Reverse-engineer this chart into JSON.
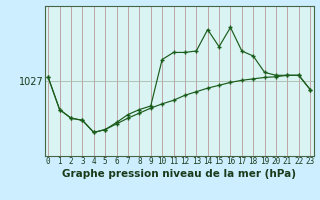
{
  "title": "Graphe pression niveau de la mer (hPa)",
  "background_color": "#cceeff",
  "plot_bg_color": "#daf4f4",
  "line_color": "#1a5c1a",
  "grid_color_v": "#bb9999",
  "grid_color_h": "#aabbaa",
  "hours": [
    0,
    1,
    2,
    3,
    4,
    5,
    6,
    7,
    8,
    9,
    10,
    11,
    12,
    13,
    14,
    15,
    16,
    17,
    18,
    19,
    20,
    21,
    22,
    23
  ],
  "series1": [
    1027.5,
    1023.0,
    1021.8,
    1021.5,
    1019.8,
    1020.2,
    1021.2,
    1022.3,
    1023.0,
    1023.5,
    1030.0,
    1031.0,
    1031.0,
    1031.2,
    1034.2,
    1031.8,
    1034.5,
    1031.2,
    1030.5,
    1028.2,
    1027.8,
    1027.8,
    1027.8,
    1025.8
  ],
  "series2": [
    1027.5,
    1023.0,
    1021.8,
    1021.5,
    1019.8,
    1020.2,
    1021.0,
    1021.8,
    1022.5,
    1023.2,
    1023.8,
    1024.3,
    1025.0,
    1025.5,
    1026.0,
    1026.4,
    1026.8,
    1027.1,
    1027.3,
    1027.5,
    1027.6,
    1027.8,
    1027.8,
    1025.8
  ],
  "ytick_val": 1027,
  "ylim": [
    1016.5,
    1037.5
  ],
  "xlim": [
    -0.3,
    23.3
  ],
  "xlabel_fontsize": 7.5,
  "ytick_fontsize": 7,
  "xtick_fontsize": 5.5
}
